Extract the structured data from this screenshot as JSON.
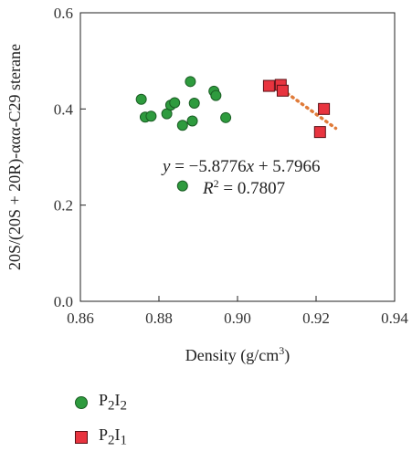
{
  "chart_data": {
    "type": "scatter",
    "xlabel_main": "Density (g/cm",
    "xlabel_sup": "3",
    "xlabel_end": ")",
    "ylabel": "20S/(20S + 20R)-ααα-C29 sterane",
    "xlim": [
      0.86,
      0.94
    ],
    "ylim": [
      0.0,
      0.6
    ],
    "x_ticks": [
      "0.86",
      "0.88",
      "0.90",
      "0.92",
      "0.94"
    ],
    "y_ticks": [
      "0.0",
      "0.2",
      "0.4",
      "0.6"
    ],
    "grid": false,
    "legend_position": "bottom-left, below plot",
    "series": [
      {
        "name_base": "P",
        "name_sub1": "2",
        "name_mid": "I",
        "name_sub2": "2",
        "marker": "circle",
        "color": "#2e9b3e",
        "points": [
          [
            0.8755,
            0.42
          ],
          [
            0.8765,
            0.383
          ],
          [
            0.878,
            0.385
          ],
          [
            0.882,
            0.39
          ],
          [
            0.883,
            0.408
          ],
          [
            0.884,
            0.413
          ],
          [
            0.886,
            0.366
          ],
          [
            0.888,
            0.457
          ],
          [
            0.8885,
            0.375
          ],
          [
            0.889,
            0.412
          ],
          [
            0.894,
            0.437
          ],
          [
            0.8945,
            0.428
          ],
          [
            0.897,
            0.382
          ],
          [
            0.886,
            0.24
          ]
        ]
      },
      {
        "name_base": "P",
        "name_sub1": "2",
        "name_mid": "I",
        "name_sub2": "1",
        "marker": "square",
        "color": "#e8343f",
        "points": [
          [
            0.908,
            0.448
          ],
          [
            0.911,
            0.45
          ],
          [
            0.9115,
            0.438
          ],
          [
            0.921,
            0.352
          ],
          [
            0.922,
            0.4
          ]
        ]
      }
    ],
    "trendline": {
      "slope": -5.8776,
      "intercept": 5.7966,
      "x_range": [
        0.909,
        0.925
      ],
      "color": "#e07b39"
    },
    "annotations": {
      "equation_y": "y",
      "equation_mid": " = −5.8776",
      "equation_x": "x",
      "equation_end": " + 5.7966",
      "r2_r": "R",
      "r2_sup": "2",
      "r2_end": " = 0.7807"
    }
  }
}
